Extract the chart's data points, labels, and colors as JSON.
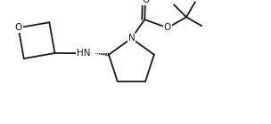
{
  "background": "#ffffff",
  "line_color": "#1a1a1a",
  "line_width": 1.3,
  "fig_width": 3.04,
  "fig_height": 1.4,
  "dpi": 100,
  "xlim": [
    0,
    10
  ],
  "ylim": [
    0,
    4.6
  ]
}
